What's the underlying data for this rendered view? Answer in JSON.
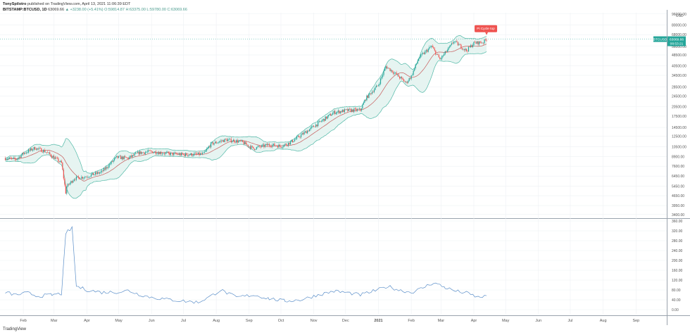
{
  "header": {
    "author": "TonySpilotro",
    "published": "published on TradingView.com, April 13, 2021 11:06:39 EDT",
    "symbol": "BITSTAMP:BTCUSD, 1D",
    "last": "63069.66",
    "change": "▲ +3238.00 (+5.41%)",
    "ohlc": "O:59814.87 H:63375.00 L:59780.00 C:63069.66"
  },
  "logo": {
    "text": "TradingView"
  },
  "colors": {
    "up": "#26a69a",
    "down": "#ef5350",
    "band": "#4fb8a6",
    "bandFill": "#e6f4f1",
    "mid": "#c75a5a",
    "indicator": "#5b8fc9",
    "grid": "#eef1f4",
    "pricetag": "#26a69a",
    "flag": "#ef5350"
  },
  "chart_data": {
    "type": "candlestick",
    "scale": "log",
    "price_axis": {
      "unit": "USD",
      "ticks": [
        "96000.00",
        "80000.00",
        "68000.00",
        "56000.00",
        "48500.00",
        "40500.00",
        "34500.00",
        "28500.00",
        "24500.00",
        "20500.00",
        "17500.00",
        "14500.00",
        "12500.00",
        "10500.00",
        "8900.00",
        "7600.00",
        "6450.00",
        "5450.00",
        "4650.00",
        "3950.00",
        "3400.00"
      ]
    },
    "indicator_axis": {
      "ticks": [
        "360.00",
        "320.00",
        "280.00",
        "240.00",
        "200.00",
        "160.00",
        "120.00",
        "80.00",
        "40.00",
        "0.00"
      ]
    },
    "time_axis": {
      "labels": [
        "Feb",
        "Mar",
        "Apr",
        "May",
        "Jun",
        "Jul",
        "Aug",
        "Sep",
        "Oct",
        "Nov",
        "Dec",
        "2021",
        "Feb",
        "Mar",
        "Apr",
        "May",
        "Jun",
        "Jul",
        "Aug",
        "Sep"
      ]
    },
    "price_tags": {
      "symbol": "BTCUSD",
      "last": "63069.66",
      "countdown": "08:53:21"
    },
    "annotation": "Pi Cycle top",
    "series": [
      {
        "name": "price",
        "points": [
          [
            "2020-01-15",
            8700
          ],
          [
            "2020-01-25",
            8500
          ],
          [
            "2020-02-01",
            9400
          ],
          [
            "2020-02-12",
            10300
          ],
          [
            "2020-02-22",
            9700
          ],
          [
            "2020-03-01",
            8800
          ],
          [
            "2020-03-08",
            8000
          ],
          [
            "2020-03-12",
            4900
          ],
          [
            "2020-03-13",
            5400
          ],
          [
            "2020-03-20",
            6200
          ],
          [
            "2020-03-31",
            6400
          ],
          [
            "2020-04-15",
            6900
          ],
          [
            "2020-04-29",
            8800
          ],
          [
            "2020-05-10",
            8700
          ],
          [
            "2020-05-20",
            9500
          ],
          [
            "2020-06-01",
            9700
          ],
          [
            "2020-06-15",
            9400
          ],
          [
            "2020-07-01",
            9200
          ],
          [
            "2020-07-20",
            9300
          ],
          [
            "2020-07-27",
            11000
          ],
          [
            "2020-08-10",
            11800
          ],
          [
            "2020-08-25",
            11400
          ],
          [
            "2020-09-05",
            10200
          ],
          [
            "2020-09-20",
            10900
          ],
          [
            "2020-10-01",
            10600
          ],
          [
            "2020-10-10",
            11300
          ],
          [
            "2020-10-21",
            12900
          ],
          [
            "2020-11-05",
            15500
          ],
          [
            "2020-11-20",
            18600
          ],
          [
            "2020-12-01",
            19200
          ],
          [
            "2020-12-15",
            19400
          ],
          [
            "2020-12-20",
            23500
          ],
          [
            "2021-01-01",
            29500
          ],
          [
            "2021-01-08",
            40000
          ],
          [
            "2021-01-15",
            36500
          ],
          [
            "2021-01-27",
            30500
          ],
          [
            "2021-02-01",
            34000
          ],
          [
            "2021-02-08",
            46000
          ],
          [
            "2021-02-20",
            56000
          ],
          [
            "2021-02-28",
            45000
          ],
          [
            "2021-03-10",
            56000
          ],
          [
            "2021-03-13",
            61000
          ],
          [
            "2021-03-25",
            52000
          ],
          [
            "2021-04-01",
            59000
          ],
          [
            "2021-04-10",
            60000
          ],
          [
            "2021-04-13",
            63069.66
          ]
        ]
      },
      {
        "name": "volatility",
        "points": [
          [
            "2020-01-15",
            70
          ],
          [
            "2020-01-25",
            60
          ],
          [
            "2020-02-05",
            68
          ],
          [
            "2020-02-15",
            55
          ],
          [
            "2020-02-28",
            60
          ],
          [
            "2020-03-08",
            65
          ],
          [
            "2020-03-12",
            300
          ],
          [
            "2020-03-14",
            320
          ],
          [
            "2020-03-18",
            330
          ],
          [
            "2020-03-22",
            95
          ],
          [
            "2020-04-01",
            80
          ],
          [
            "2020-04-15",
            70
          ],
          [
            "2020-05-01",
            72
          ],
          [
            "2020-05-10",
            78
          ],
          [
            "2020-05-20",
            62
          ],
          [
            "2020-06-01",
            50
          ],
          [
            "2020-06-15",
            42
          ],
          [
            "2020-07-01",
            35
          ],
          [
            "2020-07-15",
            30
          ],
          [
            "2020-07-27",
            55
          ],
          [
            "2020-08-05",
            80
          ],
          [
            "2020-08-20",
            50
          ],
          [
            "2020-09-05",
            60
          ],
          [
            "2020-09-20",
            45
          ],
          [
            "2020-10-05",
            35
          ],
          [
            "2020-10-20",
            40
          ],
          [
            "2020-11-05",
            60
          ],
          [
            "2020-11-20",
            75
          ],
          [
            "2020-12-01",
            70
          ],
          [
            "2020-12-15",
            60
          ],
          [
            "2020-12-31",
            80
          ],
          [
            "2021-01-10",
            95
          ],
          [
            "2021-01-20",
            80
          ],
          [
            "2021-02-01",
            70
          ],
          [
            "2021-02-10",
            85
          ],
          [
            "2021-02-22",
            110
          ],
          [
            "2021-03-05",
            90
          ],
          [
            "2021-03-15",
            75
          ],
          [
            "2021-03-25",
            68
          ],
          [
            "2021-04-05",
            50
          ],
          [
            "2021-04-13",
            57
          ]
        ]
      }
    ]
  }
}
